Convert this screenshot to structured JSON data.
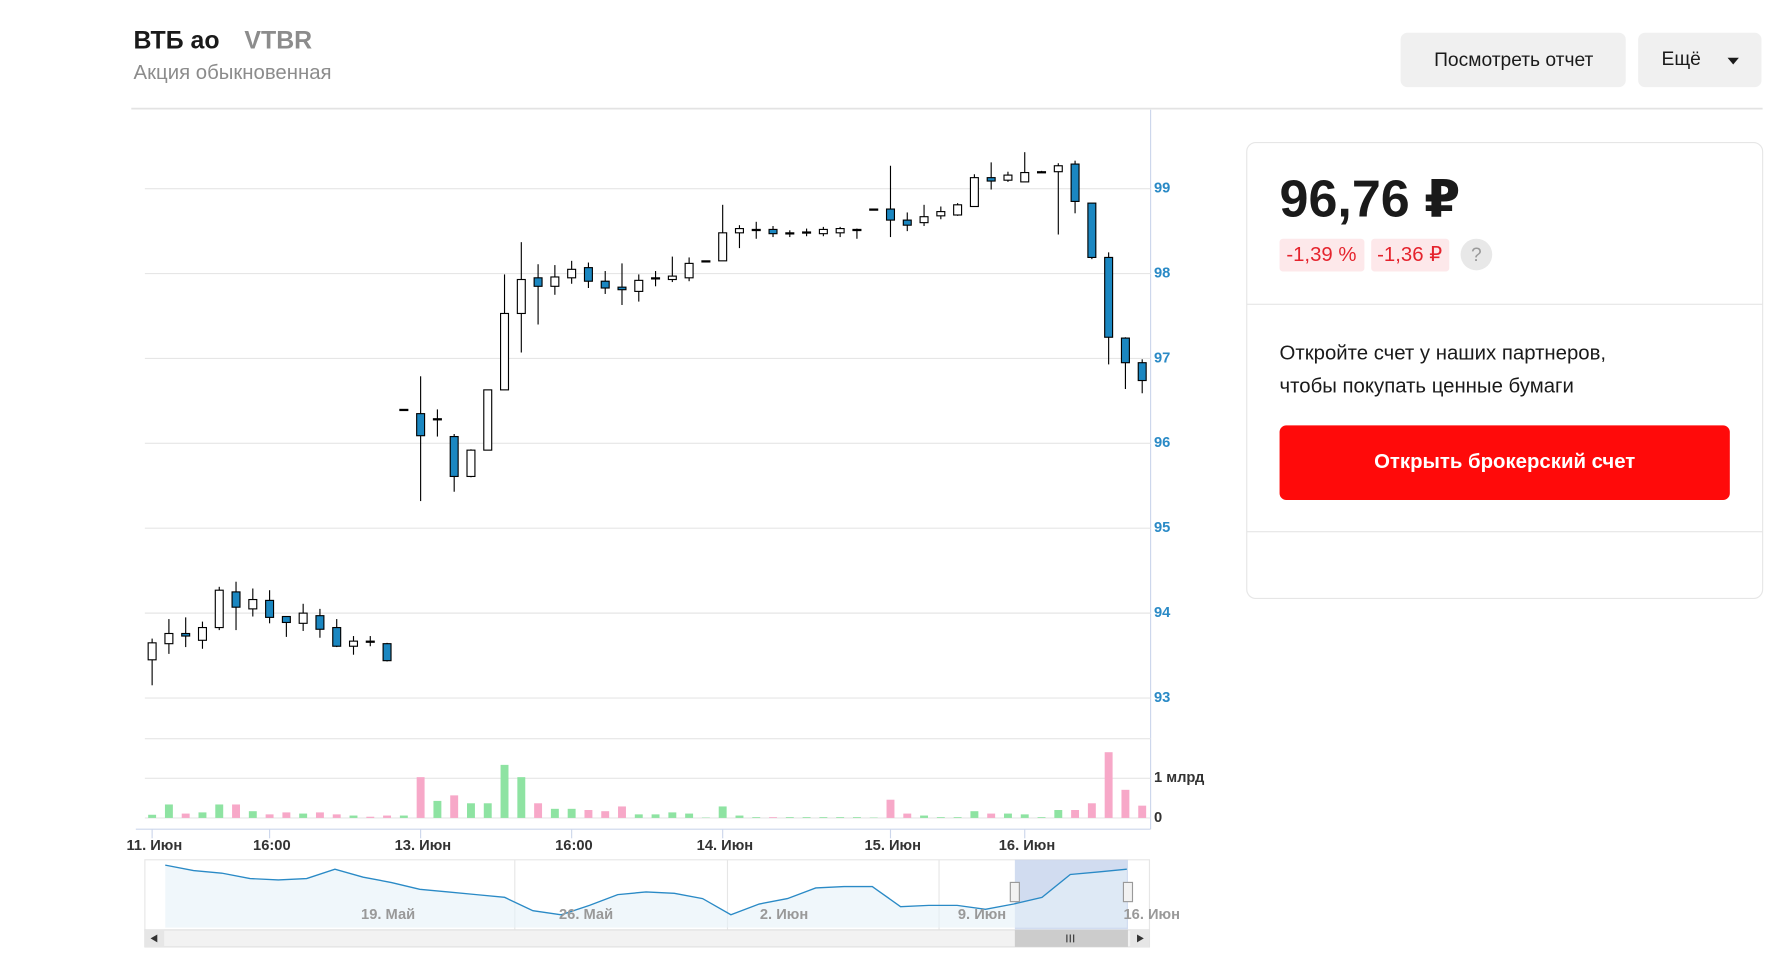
{
  "header": {
    "title": "ВТБ ао",
    "ticker": "VTBR",
    "subtitle": "Акция обыкновенная",
    "report_button": "Посмотреть отчет",
    "more_button": "Ещё"
  },
  "card": {
    "price": "96,76 ₽",
    "change_percent": "-1,39 %",
    "change_value": "-1,36 ₽",
    "help": "?",
    "promo_lines": [
      "Откройте счет у наших партнеров,",
      "чтобы покупать ценные бумаги"
    ],
    "cta": "Открыть брокерский счет"
  },
  "chart_data": {
    "type": "candlestick",
    "categories": [
      "11. Июн",
      null,
      null,
      null,
      null,
      null,
      null,
      "16:00",
      null,
      null,
      null,
      null,
      null,
      null,
      null,
      null,
      "13. Июн",
      null,
      null,
      null,
      null,
      null,
      null,
      null,
      null,
      "16:00",
      null,
      null,
      null,
      null,
      null,
      null,
      null,
      null,
      "14. Июн",
      null,
      null,
      null,
      null,
      null,
      null,
      null,
      null,
      null,
      "15. Июн",
      null,
      null,
      null,
      null,
      null,
      null,
      null,
      "16. Июн",
      null,
      null,
      null,
      null,
      null,
      null,
      null
    ],
    "open": [
      93.45,
      93.64,
      93.76,
      93.68,
      93.83,
      94.25,
      94.05,
      94.15,
      93.96,
      93.88,
      93.97,
      93.83,
      93.61,
      93.67,
      93.64,
      96.4,
      96.35,
      96.29,
      96.08,
      95.61,
      95.92,
      96.63,
      97.53,
      97.95,
      97.85,
      97.95,
      98.07,
      97.91,
      97.84,
      97.79,
      97.95,
      97.93,
      97.95,
      98.15,
      98.15,
      98.48,
      98.52,
      98.52,
      98.48,
      98.49,
      98.47,
      98.48,
      98.52,
      98.76,
      98.76,
      98.63,
      98.6,
      98.68,
      98.69,
      98.79,
      99.13,
      99.1,
      99.08,
      99.2,
      99.2,
      99.29,
      98.83,
      98.19,
      97.24,
      96.95
    ],
    "high": [
      93.7,
      93.93,
      93.95,
      93.9,
      94.31,
      94.37,
      94.29,
      94.27,
      93.96,
      94.11,
      94.05,
      93.93,
      93.73,
      93.73,
      93.65,
      96.4,
      96.79,
      96.4,
      96.11,
      95.93,
      96.63,
      97.99,
      98.37,
      98.11,
      98.1,
      98.15,
      98.13,
      98.03,
      98.12,
      97.99,
      98.03,
      98.2,
      98.19,
      98.15,
      98.81,
      98.57,
      98.61,
      98.56,
      98.51,
      98.53,
      98.55,
      98.55,
      98.53,
      98.76,
      99.27,
      98.72,
      98.81,
      98.79,
      98.83,
      99.17,
      99.31,
      99.2,
      99.43,
      99.21,
      99.3,
      99.33,
      98.83,
      98.25,
      97.25,
      96.99
    ],
    "low": [
      93.15,
      93.52,
      93.6,
      93.58,
      93.8,
      93.8,
      93.96,
      93.88,
      93.72,
      93.79,
      93.71,
      93.6,
      93.51,
      93.61,
      93.43,
      96.4,
      95.32,
      96.08,
      95.43,
      95.6,
      95.92,
      96.63,
      97.07,
      97.4,
      97.75,
      97.88,
      97.83,
      97.76,
      97.63,
      97.67,
      97.85,
      97.9,
      97.91,
      98.15,
      98.15,
      98.3,
      98.41,
      98.43,
      98.43,
      98.44,
      98.44,
      98.43,
      98.41,
      98.76,
      98.43,
      98.5,
      98.56,
      98.64,
      98.68,
      98.79,
      98.99,
      99.08,
      99.08,
      99.19,
      98.46,
      98.71,
      98.17,
      96.93,
      96.64,
      96.59
    ],
    "close": [
      93.65,
      93.76,
      93.73,
      93.83,
      94.27,
      94.07,
      94.16,
      93.95,
      93.89,
      94.0,
      93.81,
      93.61,
      93.67,
      93.66,
      93.44,
      96.4,
      96.09,
      96.29,
      95.61,
      95.92,
      96.63,
      97.53,
      97.93,
      97.85,
      97.96,
      98.05,
      97.91,
      97.83,
      97.81,
      97.92,
      97.95,
      97.97,
      98.12,
      98.15,
      98.48,
      98.53,
      98.52,
      98.47,
      98.48,
      98.49,
      98.52,
      98.53,
      98.52,
      98.76,
      98.63,
      98.57,
      98.67,
      98.73,
      98.81,
      99.13,
      99.09,
      99.16,
      99.19,
      99.2,
      99.27,
      98.85,
      98.19,
      97.25,
      96.95,
      96.74
    ],
    "up_color": "#ffffff",
    "down_color": "#1b87c1",
    "ylim": [
      93,
      99.93
    ],
    "yticks": [
      93,
      94,
      95,
      96,
      97,
      98,
      99
    ],
    "grid": true,
    "volume": {
      "values": [
        0.08,
        0.34,
        0.11,
        0.14,
        0.34,
        0.34,
        0.17,
        0.09,
        0.14,
        0.11,
        0.14,
        0.09,
        0.06,
        0.03,
        0.06,
        0.06,
        1.03,
        0.43,
        0.57,
        0.37,
        0.37,
        1.34,
        1.03,
        0.37,
        0.23,
        0.23,
        0.2,
        0.17,
        0.29,
        0.09,
        0.09,
        0.14,
        0.11,
        0.01,
        0.29,
        0.06,
        0.02,
        0.02,
        0.02,
        0.02,
        0.02,
        0.02,
        0.02,
        0.01,
        0.46,
        0.11,
        0.06,
        0.02,
        0.02,
        0.17,
        0.11,
        0.11,
        0.09,
        0.02,
        0.2,
        0.2,
        0.37,
        1.66,
        0.71,
        0.31
      ],
      "up_color": "#8ee3a2",
      "down_color": "#f7a8c8",
      "ylim": [
        0,
        2
      ],
      "yticks": [
        0,
        {
          "value": 1,
          "label": "1 млрд"
        }
      ]
    },
    "navigator": {
      "categories": [
        null,
        null,
        null,
        null,
        null,
        null,
        null,
        "19. Май",
        null,
        null,
        null,
        null,
        null,
        null,
        "26. Май",
        null,
        null,
        null,
        null,
        null,
        null,
        "2. Июн",
        null,
        null,
        null,
        null,
        null,
        null,
        "9. Июн",
        null,
        null,
        null,
        null,
        null,
        "16. Июн"
      ],
      "values": [
        99.5,
        98.9,
        98.6,
        98.0,
        97.85,
        98.0,
        99.05,
        98.15,
        97.55,
        96.8,
        96.5,
        96.2,
        95.9,
        94.4,
        93.95,
        95.0,
        96.2,
        96.5,
        96.35,
        95.75,
        93.95,
        95.15,
        95.75,
        96.95,
        97.1,
        97.1,
        94.85,
        95.0,
        95.0,
        94.55,
        95.15,
        95.9,
        98.45,
        98.75,
        99.05
      ],
      "color": "#2a8ac6",
      "ylim": [
        92.5,
        100.1
      ]
    }
  }
}
